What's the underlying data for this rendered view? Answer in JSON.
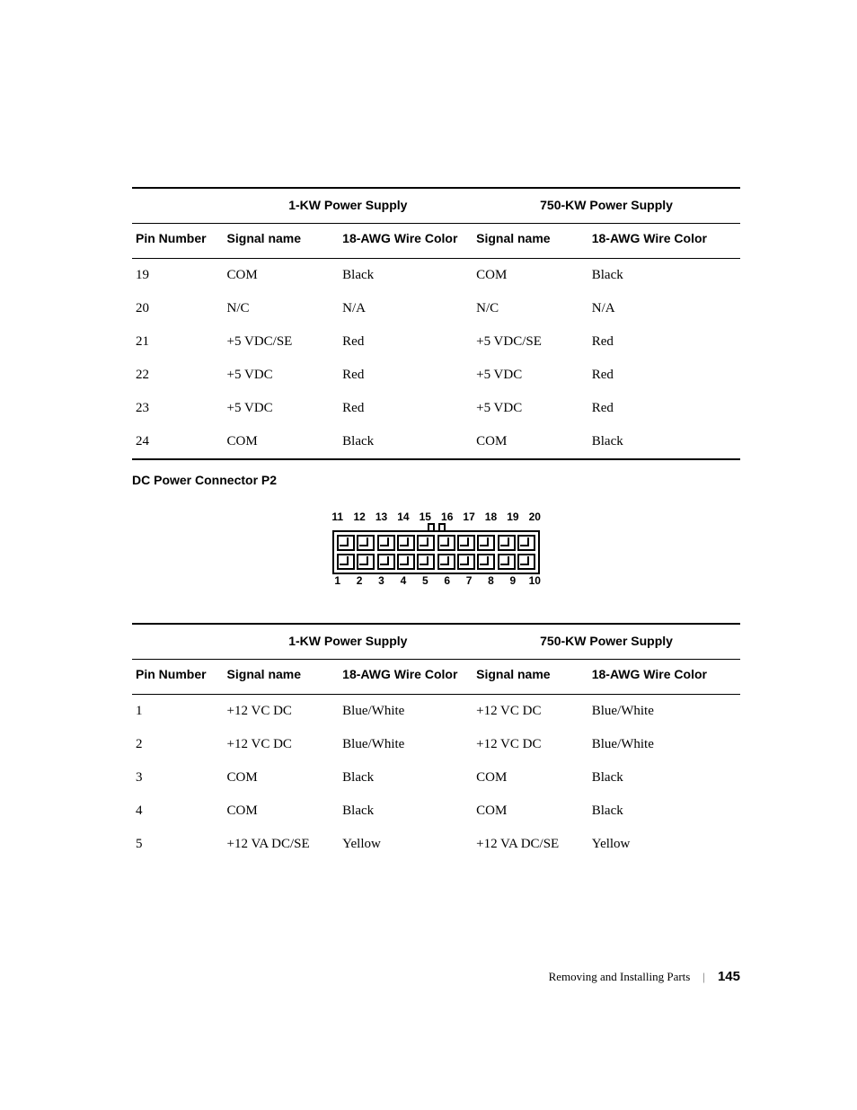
{
  "table1": {
    "sup_headers": {
      "ps1": "1-KW Power Supply",
      "ps2": "750-KW Power Supply"
    },
    "sub_headers": {
      "pin": "Pin Number",
      "sig": "Signal name",
      "wire": "18-AWG Wire Color",
      "sig2": "Signal name",
      "wire2": "18-AWG Wire Color"
    },
    "rows": [
      {
        "pin": "19",
        "sig": "COM",
        "wire": "Black",
        "sig2": "COM",
        "wire2": "Black"
      },
      {
        "pin": "20",
        "sig": "N/C",
        "wire": "N/A",
        "sig2": "N/C",
        "wire2": "N/A"
      },
      {
        "pin": "21",
        "sig": "+5 VDC/SE",
        "wire": "Red",
        "sig2": "+5 VDC/SE",
        "wire2": "Red"
      },
      {
        "pin": "22",
        "sig": "+5 VDC",
        "wire": "Red",
        "sig2": "+5 VDC",
        "wire2": "Red"
      },
      {
        "pin": "23",
        "sig": "+5 VDC",
        "wire": "Red",
        "sig2": "+5 VDC",
        "wire2": "Red"
      },
      {
        "pin": "24",
        "sig": "COM",
        "wire": "Black",
        "sig2": "COM",
        "wire2": "Black"
      }
    ]
  },
  "section_title": "DC Power Connector P2",
  "connector": {
    "top_numbers": [
      "11",
      "12",
      "13",
      "14",
      "15",
      "16",
      "17",
      "18",
      "19",
      "20"
    ],
    "bottom_numbers": [
      "1",
      "2",
      "3",
      "4",
      "5",
      "6",
      "7",
      "8",
      "9",
      "10"
    ],
    "pins_per_row": 10
  },
  "table2": {
    "sup_headers": {
      "ps1": "1-KW Power Supply",
      "ps2": "750-KW Power Supply"
    },
    "sub_headers": {
      "pin": "Pin Number",
      "sig": "Signal name",
      "wire": "18-AWG Wire Color",
      "sig2": "Signal name",
      "wire2": "18-AWG Wire Color"
    },
    "rows": [
      {
        "pin": "1",
        "sig": "+12 VC DC",
        "wire": "Blue/White",
        "sig2": "+12 VC DC",
        "wire2": "Blue/White"
      },
      {
        "pin": "2",
        "sig": "+12 VC DC",
        "wire": "Blue/White",
        "sig2": "+12 VC DC",
        "wire2": "Blue/White"
      },
      {
        "pin": "3",
        "sig": "COM",
        "wire": "Black",
        "sig2": "COM",
        "wire2": "Black"
      },
      {
        "pin": "4",
        "sig": "COM",
        "wire": "Black",
        "sig2": "COM",
        "wire2": "Black"
      },
      {
        "pin": "5",
        "sig": "+12 VA DC/SE",
        "wire": "Yellow",
        "sig2": "+12 VA DC/SE",
        "wire2": "Yellow"
      }
    ]
  },
  "footer": {
    "chapter": "Removing and Installing Parts",
    "sep": "|",
    "page": "145"
  }
}
